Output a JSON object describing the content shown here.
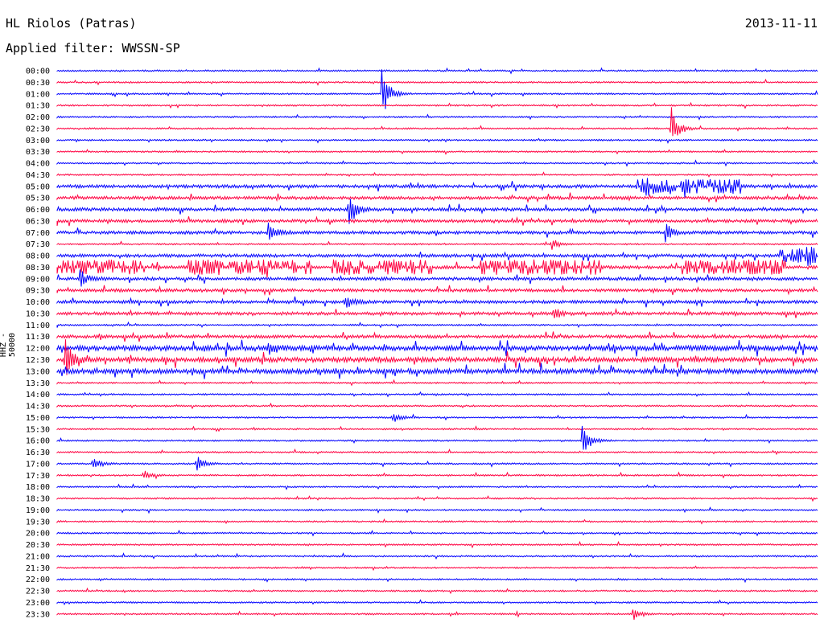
{
  "header": {
    "station": "HL Riolos (Patras)",
    "date": "2013-11-11",
    "filter": "Applied filter: WWSSN-SP"
  },
  "chart_data": {
    "type": "line",
    "title": "HL Riolos (Patras)",
    "subtitle": "Applied filter: WWSSN-SP",
    "ylabel": "HHZ - 50000",
    "colors": [
      "#0000ff",
      "#ff0040"
    ],
    "rows": [
      "00:00",
      "00:30",
      "01:00",
      "01:30",
      "02:00",
      "02:30",
      "03:00",
      "03:30",
      "04:00",
      "04:30",
      "05:00",
      "05:30",
      "06:00",
      "06:30",
      "07:00",
      "07:30",
      "08:00",
      "08:30",
      "09:00",
      "09:30",
      "10:00",
      "10:30",
      "11:00",
      "11:30",
      "12:00",
      "12:30",
      "13:00",
      "13:30",
      "14:00",
      "14:30",
      "15:00",
      "15:30",
      "16:00",
      "16:30",
      "17:00",
      "17:30",
      "18:00",
      "18:30",
      "19:00",
      "19:30",
      "20:00",
      "20:30",
      "21:00",
      "21:30",
      "22:00",
      "22:30",
      "23:00",
      "23:30"
    ],
    "noise_level": [
      1,
      1,
      1,
      1,
      1,
      1,
      1,
      1,
      1,
      1,
      2,
      2,
      2,
      2,
      2,
      1,
      2,
      2,
      2,
      2,
      2,
      2,
      1,
      2,
      3,
      3,
      3,
      1,
      1,
      1,
      1,
      1,
      1,
      1,
      1,
      1,
      1,
      1,
      1,
      1,
      1,
      1,
      1,
      1,
      1,
      1,
      1,
      1
    ],
    "events": [
      {
        "row": 2,
        "x_min": 12.8,
        "amp": 3.5
      },
      {
        "row": 5,
        "x_min": 24.2,
        "amp": 3.0
      },
      {
        "row": 10,
        "x_min": 23.1,
        "amp": 1.0
      },
      {
        "row": 12,
        "x_min": 11.5,
        "amp": 2.0
      },
      {
        "row": 14,
        "x_min": 8.3,
        "amp": 1.5
      },
      {
        "row": 14,
        "x_min": 24.0,
        "amp": 1.2
      },
      {
        "row": 15,
        "x_min": 19.5,
        "amp": 0.8
      },
      {
        "row": 16,
        "x_min": 29.6,
        "amp": 0.8
      },
      {
        "row": 18,
        "x_min": 0.9,
        "amp": 1.2
      },
      {
        "row": 20,
        "x_min": 11.4,
        "amp": 1.0
      },
      {
        "row": 21,
        "x_min": 19.6,
        "amp": 0.8
      },
      {
        "row": 24,
        "x_min": 8.3,
        "amp": 1.0
      },
      {
        "row": 25,
        "x_min": 0.3,
        "amp": 3.0
      },
      {
        "row": 30,
        "x_min": 13.2,
        "amp": 0.8
      },
      {
        "row": 32,
        "x_min": 20.7,
        "amp": 2.5
      },
      {
        "row": 34,
        "x_min": 1.4,
        "amp": 1.0
      },
      {
        "row": 34,
        "x_min": 5.5,
        "amp": 1.2
      },
      {
        "row": 35,
        "x_min": 3.4,
        "amp": 0.6
      },
      {
        "row": 47,
        "x_min": 22.7,
        "amp": 1.0
      }
    ],
    "tremor_bursts": [
      {
        "row": 10,
        "x_start": 22.9,
        "x_end": 27.0
      },
      {
        "row": 16,
        "x_start": 28.4,
        "x_end": 30.0
      },
      {
        "row": 17,
        "x_start": 0.0,
        "x_end": 3.5
      },
      {
        "row": 17,
        "x_start": 5.1,
        "x_end": 10.0
      },
      {
        "row": 17,
        "x_start": 10.7,
        "x_end": 14.8
      },
      {
        "row": 17,
        "x_start": 16.7,
        "x_end": 21.5
      },
      {
        "row": 17,
        "x_start": 24.6,
        "x_end": 28.9
      }
    ],
    "grid": false,
    "legend": "none"
  }
}
